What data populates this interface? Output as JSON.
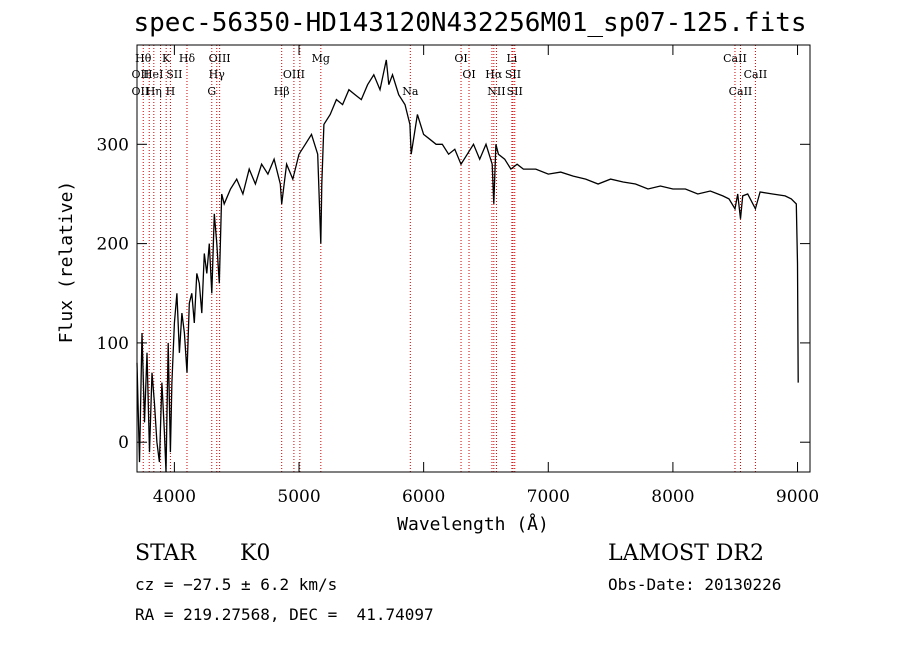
{
  "chart_data": {
    "type": "line",
    "title": "spec-56350-HD143120N432256M01_sp07-125.fits",
    "xlabel": "Wavelength (Å)",
    "ylabel": "Flux (relative)",
    "xlim": [
      3700,
      9100
    ],
    "ylim": [
      -30,
      400
    ],
    "xticks": [
      {
        "value": 4000,
        "label": "4000"
      },
      {
        "value": 5000,
        "label": "5000"
      },
      {
        "value": 6000,
        "label": "6000"
      },
      {
        "value": 7000,
        "label": "7000"
      },
      {
        "value": 8000,
        "label": "8000"
      },
      {
        "value": 9000,
        "label": "9000"
      }
    ],
    "yticks": [
      {
        "value": 0,
        "label": "0"
      },
      {
        "value": 100,
        "label": "100"
      },
      {
        "value": 200,
        "label": "200"
      },
      {
        "value": 300,
        "label": "300"
      }
    ],
    "series": [
      {
        "x": [
          3700,
          3720,
          3740,
          3760,
          3780,
          3800,
          3820,
          3840,
          3860,
          3880,
          3900,
          3920,
          3933,
          3950,
          3968,
          3980,
          4000,
          4020,
          4040,
          4060,
          4080,
          4101,
          4120,
          4140,
          4160,
          4180,
          4200,
          4220,
          4240,
          4260,
          4280,
          4300,
          4320,
          4340,
          4360,
          4380,
          4400,
          4450,
          4500,
          4550,
          4600,
          4650,
          4700,
          4750,
          4800,
          4850,
          4861,
          4900,
          4950,
          5000,
          5050,
          5100,
          5150,
          5175,
          5183,
          5200,
          5250,
          5300,
          5350,
          5400,
          5450,
          5500,
          5550,
          5600,
          5650,
          5700,
          5720,
          5750,
          5800,
          5850,
          5890,
          5900,
          5950,
          6000,
          6050,
          6100,
          6150,
          6200,
          6250,
          6300,
          6350,
          6400,
          6450,
          6500,
          6550,
          6563,
          6580,
          6600,
          6650,
          6700,
          6750,
          6800,
          6900,
          7000,
          7100,
          7200,
          7300,
          7400,
          7500,
          7600,
          7700,
          7800,
          7900,
          8000,
          8100,
          8200,
          8300,
          8400,
          8450,
          8498,
          8520,
          8542,
          8560,
          8600,
          8662,
          8700,
          8800,
          8900,
          8950,
          8990,
          9000,
          9005
        ],
        "y": [
          80,
          -20,
          110,
          20,
          90,
          -10,
          70,
          40,
          0,
          -20,
          60,
          10,
          -30,
          100,
          -10,
          60,
          120,
          150,
          90,
          130,
          110,
          70,
          140,
          150,
          120,
          170,
          160,
          130,
          190,
          170,
          200,
          150,
          230,
          200,
          160,
          250,
          240,
          255,
          265,
          250,
          275,
          260,
          280,
          270,
          285,
          260,
          240,
          280,
          265,
          290,
          300,
          310,
          290,
          200,
          260,
          320,
          330,
          345,
          340,
          355,
          350,
          345,
          360,
          370,
          355,
          385,
          360,
          370,
          350,
          340,
          320,
          290,
          330,
          310,
          305,
          300,
          300,
          290,
          295,
          280,
          290,
          300,
          285,
          300,
          280,
          240,
          300,
          290,
          285,
          275,
          280,
          275,
          275,
          270,
          272,
          268,
          265,
          260,
          265,
          262,
          260,
          255,
          258,
          255,
          255,
          250,
          253,
          248,
          245,
          235,
          250,
          225,
          248,
          250,
          235,
          252,
          250,
          248,
          245,
          240,
          180,
          60
        ]
      }
    ],
    "lines": [
      {
        "wavelength": 3750,
        "label": "Hθ",
        "row": 1
      },
      {
        "wavelength": 3798,
        "label": "",
        "row": 1
      },
      {
        "wavelength": 3835,
        "label": "",
        "row": 1
      },
      {
        "wavelength": 3889,
        "label": "",
        "row": 1
      },
      {
        "wavelength": 3934,
        "label": "K",
        "row": 1
      },
      {
        "wavelength": 3968,
        "label": "",
        "row": 1
      },
      {
        "wavelength": 4101,
        "label": "Hδ",
        "row": 1
      },
      {
        "wavelength": 4300,
        "label": "",
        "row": 1
      },
      {
        "wavelength": 4340,
        "label": "",
        "row": 1
      },
      {
        "wavelength": 4363,
        "label": "OIII",
        "row": 1
      },
      {
        "wavelength": 4861,
        "label": "",
        "row": 1
      },
      {
        "wavelength": 4959,
        "label": "",
        "row": 1
      },
      {
        "wavelength": 5007,
        "label": "",
        "row": 1
      },
      {
        "wavelength": 5175,
        "label": "Mg",
        "row": 1
      },
      {
        "wavelength": 5893,
        "label": "",
        "row": 1
      },
      {
        "wavelength": 6300,
        "label": "OI",
        "row": 1
      },
      {
        "wavelength": 6364,
        "label": "",
        "row": 1
      },
      {
        "wavelength": 6548,
        "label": "",
        "row": 1
      },
      {
        "wavelength": 6563,
        "label": "",
        "row": 1
      },
      {
        "wavelength": 6584,
        "label": "",
        "row": 1
      },
      {
        "wavelength": 6708,
        "label": "Li",
        "row": 1
      },
      {
        "wavelength": 6717,
        "label": "",
        "row": 1
      },
      {
        "wavelength": 6731,
        "label": "",
        "row": 1
      },
      {
        "wavelength": 8498,
        "label": "CaII",
        "row": 1
      },
      {
        "wavelength": 8542,
        "label": "",
        "row": 1
      },
      {
        "wavelength": 8662,
        "label": "",
        "row": 1
      }
    ],
    "line_labels": [
      {
        "wavelength": 3750,
        "label": "Hθ",
        "row": 1
      },
      {
        "wavelength": 3934,
        "label": "K",
        "row": 1
      },
      {
        "wavelength": 4101,
        "label": "Hδ",
        "row": 1
      },
      {
        "wavelength": 4363,
        "label": "OIII",
        "row": 1
      },
      {
        "wavelength": 5175,
        "label": "Mg",
        "row": 1
      },
      {
        "wavelength": 6300,
        "label": "OI",
        "row": 1
      },
      {
        "wavelength": 6708,
        "label": "Li",
        "row": 1
      },
      {
        "wavelength": 8498,
        "label": "CaII",
        "row": 1
      },
      {
        "wavelength": 3727,
        "label": "OII",
        "row": 2
      },
      {
        "wavelength": 3830,
        "label": "HeI",
        "row": 2
      },
      {
        "wavelength": 4000,
        "label": "SII",
        "row": 2
      },
      {
        "wavelength": 4340,
        "label": "Hγ",
        "row": 2
      },
      {
        "wavelength": 4959,
        "label": "OIII",
        "row": 2
      },
      {
        "wavelength": 6364,
        "label": "OI",
        "row": 2
      },
      {
        "wavelength": 6563,
        "label": "Hα",
        "row": 2
      },
      {
        "wavelength": 6717,
        "label": "SII",
        "row": 2
      },
      {
        "wavelength": 8662,
        "label": "CaII",
        "row": 2
      },
      {
        "wavelength": 3727,
        "label": "OII",
        "row": 3
      },
      {
        "wavelength": 3835,
        "label": "Hη",
        "row": 3
      },
      {
        "wavelength": 3968,
        "label": "H",
        "row": 3
      },
      {
        "wavelength": 4300,
        "label": "G",
        "row": 3
      },
      {
        "wavelength": 4861,
        "label": "Hβ",
        "row": 3
      },
      {
        "wavelength": 5893,
        "label": "Na",
        "row": 3
      },
      {
        "wavelength": 6584,
        "label": "NII",
        "row": 3
      },
      {
        "wavelength": 6731,
        "label": "SII",
        "row": 3
      },
      {
        "wavelength": 8542,
        "label": "CaII",
        "row": 3
      }
    ],
    "line_color": "#000000",
    "marker_color": "#cc0000"
  },
  "info": {
    "object_class": "STAR",
    "subclass": "K0",
    "survey": "LAMOST DR2",
    "cz": "cz = −27.5 ± 6.2 km/s",
    "obs_date": "Obs-Date: 20130226",
    "coords": "RA = 219.27568, DEC =  41.74097"
  }
}
